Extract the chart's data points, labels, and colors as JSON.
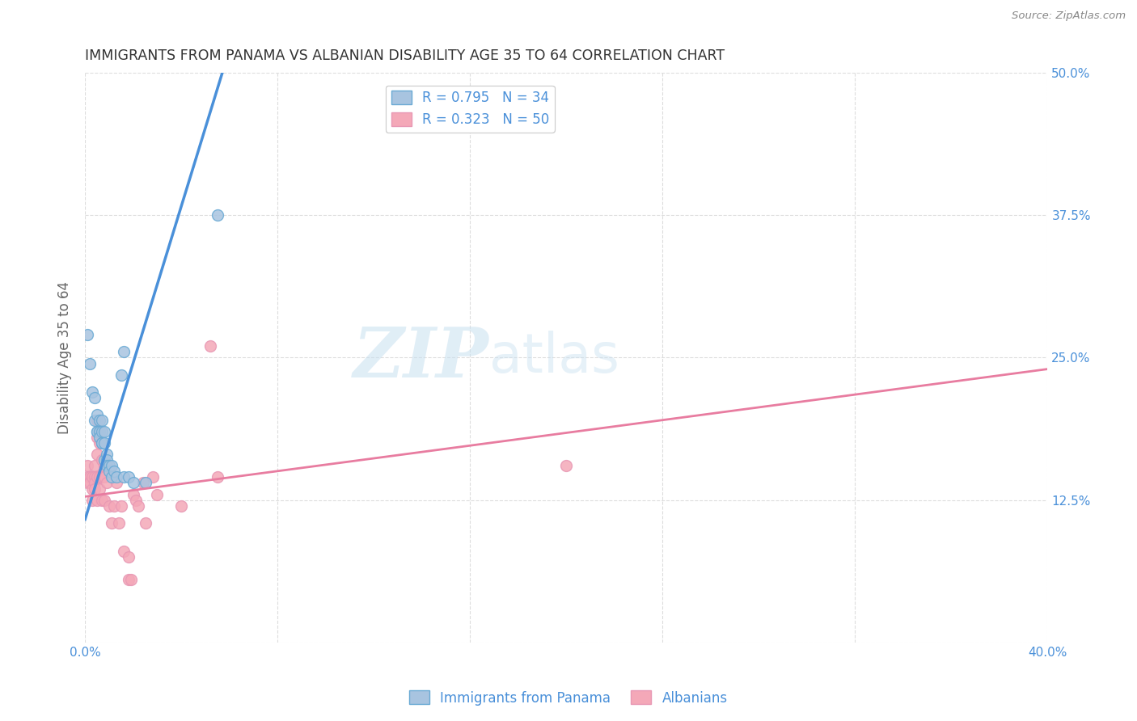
{
  "title": "IMMIGRANTS FROM PANAMA VS ALBANIAN DISABILITY AGE 35 TO 64 CORRELATION CHART",
  "source": "Source: ZipAtlas.com",
  "ylabel": "Disability Age 35 to 64",
  "xlim": [
    0.0,
    0.4
  ],
  "ylim": [
    0.0,
    0.5
  ],
  "xticks": [
    0.0,
    0.08,
    0.16,
    0.24,
    0.32,
    0.4
  ],
  "yticks": [
    0.0,
    0.125,
    0.25,
    0.375,
    0.5
  ],
  "watermark_zip": "ZIP",
  "watermark_atlas": "atlas",
  "legend_entries": [
    {
      "label": "R = 0.795   N = 34",
      "color": "#a8c4e0"
    },
    {
      "label": "R = 0.323   N = 50",
      "color": "#f4a8b8"
    }
  ],
  "legend_bottom": [
    {
      "label": "Immigrants from Panama",
      "color": "#a8c4e0"
    },
    {
      "label": "Albanians",
      "color": "#f4a8b8"
    }
  ],
  "blue_scatter": [
    [
      0.001,
      0.27
    ],
    [
      0.002,
      0.245
    ],
    [
      0.003,
      0.22
    ],
    [
      0.004,
      0.215
    ],
    [
      0.004,
      0.195
    ],
    [
      0.005,
      0.2
    ],
    [
      0.005,
      0.185
    ],
    [
      0.005,
      0.185
    ],
    [
      0.006,
      0.195
    ],
    [
      0.006,
      0.185
    ],
    [
      0.006,
      0.18
    ],
    [
      0.007,
      0.195
    ],
    [
      0.007,
      0.185
    ],
    [
      0.007,
      0.175
    ],
    [
      0.007,
      0.175
    ],
    [
      0.008,
      0.185
    ],
    [
      0.008,
      0.175
    ],
    [
      0.008,
      0.16
    ],
    [
      0.009,
      0.165
    ],
    [
      0.009,
      0.16
    ],
    [
      0.009,
      0.155
    ],
    [
      0.01,
      0.155
    ],
    [
      0.01,
      0.15
    ],
    [
      0.011,
      0.155
    ],
    [
      0.011,
      0.145
    ],
    [
      0.012,
      0.15
    ],
    [
      0.013,
      0.145
    ],
    [
      0.015,
      0.235
    ],
    [
      0.016,
      0.255
    ],
    [
      0.016,
      0.145
    ],
    [
      0.018,
      0.145
    ],
    [
      0.02,
      0.14
    ],
    [
      0.025,
      0.14
    ],
    [
      0.055,
      0.375
    ]
  ],
  "pink_scatter": [
    [
      0.001,
      0.155
    ],
    [
      0.001,
      0.145
    ],
    [
      0.001,
      0.14
    ],
    [
      0.002,
      0.145
    ],
    [
      0.002,
      0.14
    ],
    [
      0.003,
      0.145
    ],
    [
      0.003,
      0.135
    ],
    [
      0.003,
      0.125
    ],
    [
      0.004,
      0.155
    ],
    [
      0.004,
      0.145
    ],
    [
      0.004,
      0.14
    ],
    [
      0.004,
      0.135
    ],
    [
      0.005,
      0.195
    ],
    [
      0.005,
      0.18
    ],
    [
      0.005,
      0.165
    ],
    [
      0.005,
      0.145
    ],
    [
      0.005,
      0.125
    ],
    [
      0.006,
      0.185
    ],
    [
      0.006,
      0.175
    ],
    [
      0.006,
      0.145
    ],
    [
      0.006,
      0.135
    ],
    [
      0.007,
      0.175
    ],
    [
      0.007,
      0.16
    ],
    [
      0.007,
      0.145
    ],
    [
      0.007,
      0.125
    ],
    [
      0.008,
      0.155
    ],
    [
      0.008,
      0.145
    ],
    [
      0.008,
      0.125
    ],
    [
      0.009,
      0.14
    ],
    [
      0.01,
      0.12
    ],
    [
      0.011,
      0.105
    ],
    [
      0.012,
      0.12
    ],
    [
      0.013,
      0.14
    ],
    [
      0.014,
      0.105
    ],
    [
      0.015,
      0.12
    ],
    [
      0.016,
      0.08
    ],
    [
      0.018,
      0.075
    ],
    [
      0.018,
      0.055
    ],
    [
      0.019,
      0.055
    ],
    [
      0.02,
      0.13
    ],
    [
      0.021,
      0.125
    ],
    [
      0.022,
      0.12
    ],
    [
      0.024,
      0.14
    ],
    [
      0.025,
      0.105
    ],
    [
      0.028,
      0.145
    ],
    [
      0.03,
      0.13
    ],
    [
      0.04,
      0.12
    ],
    [
      0.052,
      0.26
    ],
    [
      0.055,
      0.145
    ],
    [
      0.2,
      0.155
    ]
  ],
  "blue_line_x": [
    0.0,
    0.057
  ],
  "blue_line_y": [
    0.108,
    0.5
  ],
  "pink_line_x": [
    0.0,
    0.4
  ],
  "pink_line_y": [
    0.128,
    0.24
  ],
  "blue_color": "#4a90d9",
  "pink_color": "#e87ca0",
  "scatter_blue_color": "#a8c4e0",
  "scatter_pink_color": "#f4a8b8",
  "scatter_blue_edge": "#6aaad4",
  "scatter_pink_edge": "#e898b4",
  "grid_color": "#dddddd",
  "title_color": "#333333",
  "axis_label_color": "#666666",
  "right_tick_color": "#4a90d9",
  "marker_size": 100
}
